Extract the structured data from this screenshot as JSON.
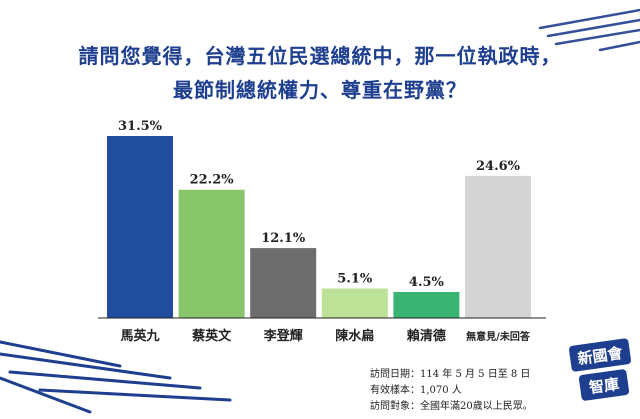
{
  "header": {
    "title_line1": "請問您覺得，台灣五位民選總統中，那一位執政時，",
    "title_line2": "最節制總統權力、尊重在野黨？"
  },
  "chart_data": {
    "type": "bar",
    "categories": [
      "馬英九",
      "蔡英文",
      "李登輝",
      "陳水扁",
      "賴清德",
      "無意見/未回答"
    ],
    "values": [
      31.5,
      22.2,
      12.1,
      5.1,
      4.5,
      24.6
    ],
    "value_labels": [
      "31.5%",
      "22.2%",
      "12.1%",
      "5.1%",
      "4.5%",
      "24.6%"
    ],
    "colors": [
      "#1f4e9e",
      "#88c56b",
      "#6d6d6d",
      "#bde197",
      "#3bb372",
      "#d4d4d4"
    ],
    "ylim": [
      0,
      31.5
    ],
    "grid": false
  },
  "notes": {
    "line1": "訪問日期：114 年 5 月 5 日至 8 日",
    "line2": "有效樣本：1,070 人",
    "line3": "訪問對象：全國年滿20歲以上民眾。"
  },
  "logo": {
    "line1": "新國會",
    "line2": "智庫",
    "colors": {
      "fill": "#1e3f8f",
      "text": "#ffffff"
    }
  }
}
